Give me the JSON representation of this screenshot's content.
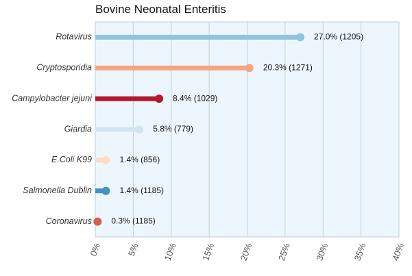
{
  "chart_data": {
    "type": "bar",
    "title": "Bovine Neonatal Enteritis",
    "xlabel": "",
    "ylabel": "",
    "orientation": "horizontal",
    "style": "lollipop",
    "categories": [
      "Rotavirus",
      "Cryptosporidia",
      "Campylobacter jejuni",
      "Giardia",
      "E.Coli K99",
      "Salmonella Dublin",
      "Coronavirus"
    ],
    "values": [
      27.0,
      20.3,
      8.4,
      5.8,
      1.4,
      1.4,
      0.3
    ],
    "counts": [
      1205,
      1271,
      1029,
      779,
      856,
      1185,
      1185
    ],
    "value_labels": [
      "27.0% (1205)",
      "20.3% (1271)",
      "8.4% (1029)",
      "5.8% (779)",
      "1.4% (856)",
      "1.4% (1185)",
      "0.3% (1185)"
    ],
    "colors": [
      "#8fc4e0",
      "#f4a582",
      "#b2182b",
      "#d1e5f0",
      "#fddbc7",
      "#4393c3",
      "#d6604d"
    ],
    "xlim": [
      0,
      40
    ],
    "xticks": [
      0,
      5,
      10,
      15,
      20,
      25,
      30,
      35,
      40
    ],
    "xtick_labels": [
      "0%",
      "5%",
      "10%",
      "15%",
      "20%",
      "25%",
      "30%",
      "35%",
      "40%"
    ],
    "grid": true,
    "plot_background": "#eef6fd",
    "grid_color": "#b7cfe3"
  }
}
